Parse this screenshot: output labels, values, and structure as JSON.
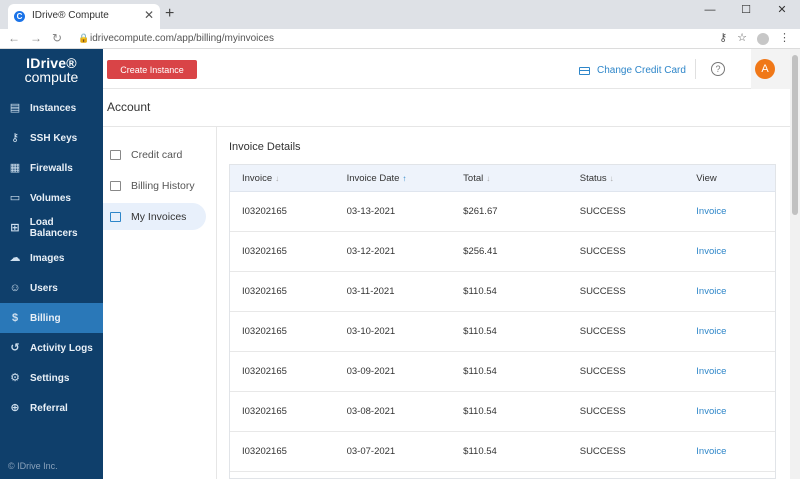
{
  "browser": {
    "tab_title": "IDrive® Compute",
    "url": "idrivecompute.com/app/billing/myinvoices"
  },
  "brand": {
    "line1": "IDrive®",
    "line2": "compute",
    "copyright": "© IDrive Inc."
  },
  "sidebar": {
    "items": [
      {
        "label": "Instances",
        "icon": "server-icon"
      },
      {
        "label": "SSH Keys",
        "icon": "key-icon"
      },
      {
        "label": "Firewalls",
        "icon": "firewall-icon"
      },
      {
        "label": "Volumes",
        "icon": "volume-icon"
      },
      {
        "label": "Load Balancers",
        "icon": "load-balancer-icon"
      },
      {
        "label": "Images",
        "icon": "cloud-upload-icon"
      },
      {
        "label": "Users",
        "icon": "user-icon"
      },
      {
        "label": "Billing",
        "icon": "billing-icon"
      },
      {
        "label": "Activity Logs",
        "icon": "history-icon"
      },
      {
        "label": "Settings",
        "icon": "gear-icon"
      },
      {
        "label": "Referral",
        "icon": "referral-icon"
      }
    ],
    "active": "Billing"
  },
  "header": {
    "create_label": "Create Instance",
    "change_card_label": "Change Credit Card",
    "help": "?",
    "avatar_initial": "A"
  },
  "page": {
    "title": "Account"
  },
  "subnav": {
    "items": [
      "Credit card",
      "Billing History",
      "My Invoices"
    ],
    "active": "My Invoices"
  },
  "invoices": {
    "title": "Invoice Details",
    "columns": [
      "Invoice",
      "Invoice Date",
      "Total",
      "Status",
      "View"
    ],
    "rows": [
      {
        "invoice": "I03202165",
        "date": "03-13-2021",
        "total": "$261.67",
        "status": "SUCCESS",
        "view": "Invoice"
      },
      {
        "invoice": "I03202165",
        "date": "03-12-2021",
        "total": "$256.41",
        "status": "SUCCESS",
        "view": "Invoice"
      },
      {
        "invoice": "I03202165",
        "date": "03-11-2021",
        "total": "$110.54",
        "status": "SUCCESS",
        "view": "Invoice"
      },
      {
        "invoice": "I03202165",
        "date": "03-10-2021",
        "total": "$110.54",
        "status": "SUCCESS",
        "view": "Invoice"
      },
      {
        "invoice": "I03202165",
        "date": "03-09-2021",
        "total": "$110.54",
        "status": "SUCCESS",
        "view": "Invoice"
      },
      {
        "invoice": "I03202165",
        "date": "03-08-2021",
        "total": "$110.54",
        "status": "SUCCESS",
        "view": "Invoice"
      },
      {
        "invoice": "I03202165",
        "date": "03-07-2021",
        "total": "$110.54",
        "status": "SUCCESS",
        "view": "Invoice"
      }
    ]
  }
}
